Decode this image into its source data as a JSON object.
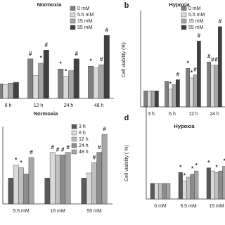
{
  "chart_data": [
    {
      "type": "bar",
      "title": "Normoxia",
      "legend": "upper right",
      "categories": [
        "6 h",
        "12 h",
        "24 h",
        "48 h"
      ],
      "ylim": [
        50,
        350
      ],
      "series": [
        {
          "name": "0 mM",
          "color": "#7f7f7f",
          "values": [
            100,
            185,
            150,
            160
          ],
          "annotations": [
            null,
            "#",
            "*",
            "*"
          ]
        },
        {
          "name": "5.5 mM",
          "color": "#d9d9d9",
          "values": [
            98,
            128,
            125,
            155
          ],
          "annotations": [
            null,
            null,
            "*",
            null
          ]
        },
        {
          "name": "15 mM",
          "color": "#a6a6a6",
          "values": [
            102,
            170,
            145,
            165
          ],
          "annotations": [
            null,
            "*",
            null,
            "#"
          ]
        },
        {
          "name": "55 mM",
          "color": "#404040",
          "values": [
            105,
            215,
            185,
            265
          ],
          "annotations": [
            null,
            "#",
            "#",
            "#"
          ]
        }
      ]
    },
    {
      "type": "bar",
      "panel": "b",
      "title": "Hypoxia",
      "y_label": "Cell viability (%)",
      "legend": "upper right",
      "categories": [
        "3 h",
        "6 h",
        "12 h",
        "24 h"
      ],
      "ylim": [
        50,
        350
      ],
      "series": [
        {
          "name": "0 mM",
          "color": "#7f7f7f",
          "values": [
            100,
            130,
            170,
            190
          ],
          "annotations": [
            null,
            null,
            "*",
            "#"
          ]
        },
        {
          "name": "5.5 mM",
          "color": "#d9d9d9",
          "values": [
            100,
            105,
            140,
            180
          ],
          "annotations": [
            null,
            "*",
            "*",
            "#"
          ]
        },
        {
          "name": "15 mM",
          "color": "#a6a6a6",
          "values": [
            100,
            120,
            150,
            180
          ],
          "annotations": [
            null,
            null,
            "#",
            "#"
          ]
        },
        {
          "name": "55 mM",
          "color": "#404040",
          "values": [
            100,
            135,
            255,
            300
          ],
          "annotations": [
            null,
            "#",
            "#",
            "#"
          ]
        }
      ]
    },
    {
      "type": "bar",
      "title": "Normoxia",
      "legend": "upper right",
      "categories": [
        "5.5 mM",
        "15 mM",
        "55 mM"
      ],
      "ylim": [
        50,
        200
      ],
      "series": [
        {
          "name": "3 h",
          "color": "#595959",
          "values": [
            100,
            100,
            100
          ],
          "annotations": [
            null,
            null,
            null
          ]
        },
        {
          "name": "6 h",
          "color": "#d9d9d9",
          "values": [
            125,
            150,
            110
          ],
          "annotations": [
            "*",
            "#",
            null
          ]
        },
        {
          "name": "12 h",
          "color": "#bfbfbf",
          "values": [
            120,
            145,
            130
          ],
          "annotations": [
            "*",
            "#",
            "#"
          ]
        },
        {
          "name": "24 h",
          "color": "#8c8c8c",
          "values": [
            108,
            145,
            150
          ],
          "annotations": [
            null,
            "#",
            "#"
          ]
        },
        {
          "name": "48 h",
          "color": "#a6a6a6",
          "values": [
            140,
            150,
            185
          ],
          "annotations": [
            "#",
            "#",
            "#"
          ]
        }
      ]
    },
    {
      "type": "bar",
      "panel": "d",
      "title": "Hypoxia",
      "y_label": "Cell viability ( %)",
      "legend": "upper right",
      "categories": [
        "0 mM",
        "5.5 mM",
        "15 mM"
      ],
      "ylim": [
        50,
        350
      ],
      "series": [
        {
          "name": "3 h",
          "color": "#595959",
          "values": [
            100,
            135,
            150
          ],
          "annotations": [
            null,
            "*",
            "*"
          ]
        },
        {
          "name": "6 h",
          "color": "#d9d9d9",
          "values": [
            100,
            108,
            140
          ],
          "annotations": [
            null,
            "*",
            null
          ]
        },
        {
          "name": "12 h",
          "color": "#bfbfbf",
          "values": [
            100,
            120,
            135
          ],
          "annotations": [
            null,
            null,
            "*"
          ]
        },
        {
          "name": "24 h",
          "color": "#8c8c8c",
          "values": [
            100,
            130,
            140
          ],
          "annotations": [
            null,
            "*",
            null
          ]
        },
        {
          "name": "48 h",
          "color": "#a6a6a6",
          "values": [
            100,
            140,
            155
          ],
          "annotations": [
            null,
            "*",
            "*"
          ]
        }
      ]
    }
  ]
}
